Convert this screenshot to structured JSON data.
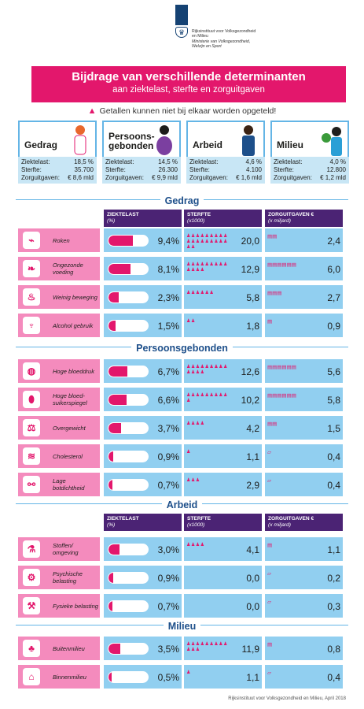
{
  "org": {
    "line1": "Rijksinstituut voor Volksgezondheid",
    "line2": "en Milieu",
    "line3": "Ministerie van Volksgezondheid,",
    "line4": "Welzijn en Sport"
  },
  "title": "Bijdrage van verschillende determinanten",
  "subtitle": "aan ziektelast, sterfte en zorguitgaven",
  "warning": "Getallen kunnen niet bij elkaar worden opgeteld!",
  "summary": [
    {
      "name": "Gedrag",
      "ziektelast_label": "Ziektelast:",
      "ziektelast": "18,5 %",
      "sterfte_label": "Sterfte:",
      "sterfte": "35.700",
      "zorg_label": "Zorguitgaven:",
      "zorg": "€ 8,6 mld"
    },
    {
      "name1": "Persoons-",
      "name2": "gebonden",
      "ziektelast_label": "Ziektelast:",
      "ziektelast": "14,5 %",
      "sterfte_label": "Sterfte:",
      "sterfte": "26.300",
      "zorg_label": "Zorguitgaven:",
      "zorg": "€ 9,9 mld"
    },
    {
      "name": "Arbeid",
      "ziektelast_label": "Ziektelast:",
      "ziektelast": "4,6 %",
      "sterfte_label": "Sterfte:",
      "sterfte": "4.100",
      "zorg_label": "Zorguitgaven:",
      "zorg": "€ 1,6 mld"
    },
    {
      "name": "Milieu",
      "ziektelast_label": "Ziektelast:",
      "ziektelast": "4,0 %",
      "sterfte_label": "Sterfte:",
      "sterfte": "12.800",
      "zorg_label": "Zorguitgaven:",
      "zorg": "€ 1,2 mld"
    }
  ],
  "headers": {
    "h1": "ZIEKTELAST",
    "h1s": "(%)",
    "h2": "STERFTE",
    "h2s": "(x1000)",
    "h3": "ZORGUITGAVEN €",
    "h3s": "(x miljard)"
  },
  "sections": {
    "gedrag": "Gedrag",
    "persoon": "Persoonsgebonden",
    "arbeid": "Arbeid",
    "milieu": "Milieu"
  },
  "rows": [
    {
      "label": "Roken",
      "icon": "cigarette-icon",
      "ziektelast": "9,4%",
      "fill": 0.62,
      "people": "♟♟♟♟♟♟♟♟♟♟♟♟♟♟♟♟♟♟♟♟",
      "sterfte": "20,0",
      "coins": "▤▤",
      "zorg": "2,4"
    },
    {
      "label": "Ongezonde voeding",
      "icon": "food-icon",
      "ziektelast": "8,1%",
      "fill": 0.55,
      "people": "♟♟♟♟♟♟♟♟♟♟♟♟♟",
      "sterfte": "12,9",
      "coins": "▤▤▤▤▤▤",
      "zorg": "6,0"
    },
    {
      "label": "Weinig beweging",
      "icon": "couch-icon",
      "ziektelast": "2,3%",
      "fill": 0.25,
      "people": "♟♟♟♟♟♟",
      "sterfte": "5,8",
      "coins": "▤▤▤",
      "zorg": "2,7"
    },
    {
      "label": "Alcohol gebruik",
      "icon": "wine-glass-icon",
      "ziektelast": "1,5%",
      "fill": 0.18,
      "people": "♟♟",
      "sterfte": "1,8",
      "coins": "▤",
      "zorg": "0,9"
    },
    {
      "label": "Hoge bloeddruk",
      "icon": "blood-pressure-icon",
      "ziektelast": "6,7%",
      "fill": 0.47,
      "people": "♟♟♟♟♟♟♟♟♟♟♟♟♟",
      "sterfte": "12,6",
      "coins": "▤▤▤▤▤▤",
      "zorg": "5,6"
    },
    {
      "label": "Hoge bloed-suikerspiegel",
      "icon": "blood-drop-icon",
      "ziektelast": "6,6%",
      "fill": 0.46,
      "people": "♟♟♟♟♟♟♟♟♟♟",
      "sterfte": "10,2",
      "coins": "▤▤▤▤▤▤",
      "zorg": "5,8"
    },
    {
      "label": "Overgewicht",
      "icon": "scale-icon",
      "ziektelast": "3,7%",
      "fill": 0.32,
      "people": "♟♟♟♟",
      "sterfte": "4,2",
      "coins": "▤▤",
      "zorg": "1,5"
    },
    {
      "label": "Cholesterol",
      "icon": "bacon-icon",
      "ziektelast": "0,9%",
      "fill": 0.12,
      "people": "♟",
      "sterfte": "1,1",
      "coins": "▱",
      "zorg": "0,4"
    },
    {
      "label": "Lage botdichtheid",
      "icon": "bone-icon",
      "ziektelast": "0,7%",
      "fill": 0.1,
      "people": "♟♟♟",
      "sterfte": "2,9",
      "coins": "▱",
      "zorg": "0,4"
    },
    {
      "label": "Stoffen/ omgeving",
      "icon": "flask-icon",
      "ziektelast": "3,0%",
      "fill": 0.28,
      "people": "♟♟♟♟",
      "sterfte": "4,1",
      "coins": "▤",
      "zorg": "1,1"
    },
    {
      "label": "Psychische belasting",
      "icon": "head-gears-icon",
      "ziektelast": "0,9%",
      "fill": 0.12,
      "people": "",
      "sterfte": "0,0",
      "coins": "▱",
      "zorg": "0,2"
    },
    {
      "label": "Fysieke belasting",
      "icon": "worker-icon",
      "ziektelast": "0,7%",
      "fill": 0.1,
      "people": "",
      "sterfte": "0,0",
      "coins": "▱",
      "zorg": "0,3"
    },
    {
      "label": "Buitenmilieu",
      "icon": "tree-icon",
      "ziektelast": "3,5%",
      "fill": 0.3,
      "people": "♟♟♟♟♟♟♟♟♟♟♟♟",
      "sterfte": "11,9",
      "coins": "▤",
      "zorg": "0,8"
    },
    {
      "label": "Binnenmilieu",
      "icon": "house-icon",
      "ziektelast": "0,5%",
      "fill": 0.08,
      "people": "♟",
      "sterfte": "1,1",
      "coins": "▱",
      "zorg": "0,4"
    }
  ],
  "footer": "Rijksinstituut voor Volksgezondheid en Milieu, April 2018"
}
